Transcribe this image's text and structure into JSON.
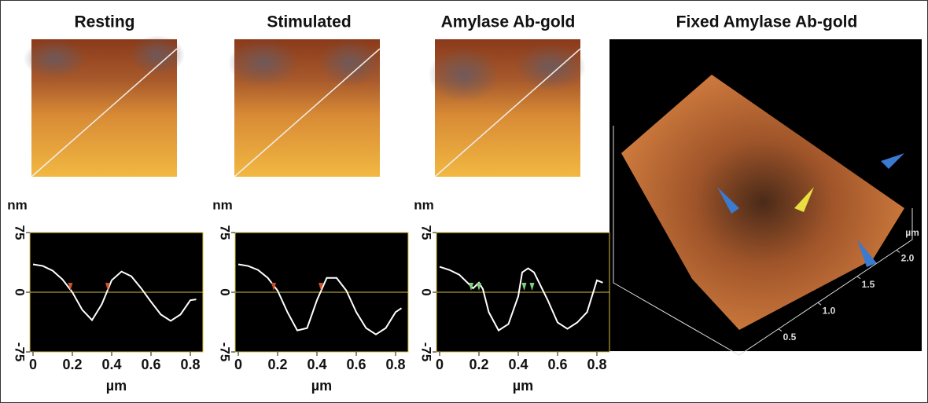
{
  "chart_data": [
    {
      "type": "line",
      "title": "Resting",
      "xlabel": "µm",
      "ylabel": "nm",
      "x": [
        0,
        0.05,
        0.1,
        0.15,
        0.2,
        0.25,
        0.3,
        0.35,
        0.4,
        0.45,
        0.5,
        0.55,
        0.6,
        0.65,
        0.7,
        0.75,
        0.8,
        0.83
      ],
      "series": [
        {
          "color": "#ffffff",
          "values": [
            35,
            33,
            27,
            16,
            0,
            -22,
            -35,
            -15,
            15,
            26,
            20,
            5,
            -12,
            -28,
            -36,
            -28,
            -10,
            -9
          ]
        }
      ],
      "markers": {
        "color": "#d0502a",
        "x": [
          0.19,
          0.38
        ]
      },
      "xlim": [
        0,
        0.86
      ],
      "xticks": [
        0,
        0.2,
        0.4,
        0.6,
        0.8
      ],
      "ylim": [
        -75,
        75
      ],
      "yticks": [
        -75,
        0,
        75
      ]
    },
    {
      "type": "line",
      "title": "Stimulated",
      "xlabel": "µm",
      "ylabel": "nm",
      "x": [
        0,
        0.05,
        0.1,
        0.15,
        0.2,
        0.25,
        0.3,
        0.35,
        0.4,
        0.45,
        0.5,
        0.55,
        0.6,
        0.65,
        0.7,
        0.75,
        0.8,
        0.83
      ],
      "series": [
        {
          "color": "#ffffff",
          "values": [
            35,
            33,
            28,
            18,
            2,
            -25,
            -48,
            -45,
            -10,
            18,
            18,
            2,
            -25,
            -45,
            -53,
            -45,
            -25,
            -20
          ]
        }
      ],
      "markers": {
        "color": "#d0502a",
        "x": [
          0.18,
          0.42
        ]
      },
      "xlim": [
        0,
        0.86
      ],
      "xticks": [
        0,
        0.2,
        0.4,
        0.6,
        0.8
      ],
      "ylim": [
        -75,
        75
      ],
      "yticks": [
        -75,
        0,
        75
      ]
    },
    {
      "type": "line",
      "title": "Amylase Ab-gold",
      "xlabel": "µm",
      "ylabel": "nm",
      "x": [
        0,
        0.05,
        0.1,
        0.15,
        0.17,
        0.2,
        0.22,
        0.25,
        0.3,
        0.35,
        0.4,
        0.42,
        0.45,
        0.48,
        0.5,
        0.55,
        0.6,
        0.65,
        0.7,
        0.75,
        0.8,
        0.83
      ],
      "series": [
        {
          "color": "#ffffff",
          "values": [
            32,
            28,
            22,
            10,
            5,
            12,
            4,
            -25,
            -48,
            -40,
            -5,
            25,
            30,
            25,
            15,
            -10,
            -38,
            -46,
            -38,
            -25,
            15,
            12
          ]
        }
      ],
      "markers": {
        "color": "#7fd07a",
        "x": [
          0.16,
          0.2,
          0.43,
          0.47
        ]
      },
      "xlim": [
        0,
        0.86
      ],
      "xticks": [
        0,
        0.2,
        0.4,
        0.6,
        0.8
      ],
      "ylim": [
        -75,
        75
      ],
      "yticks": [
        -75,
        0,
        75
      ]
    },
    {
      "type": "surface",
      "title": "Fixed Amylase Ab-gold",
      "xlabel": "µm",
      "xlim": [
        0,
        2.2
      ],
      "xticks": [
        {
          "value": 0.5,
          "label": "0.5"
        },
        {
          "value": 1,
          "label": "1.0"
        },
        {
          "value": 1.5,
          "label": "1.5"
        },
        {
          "value": 2,
          "label": "2.0"
        }
      ]
    }
  ]
}
